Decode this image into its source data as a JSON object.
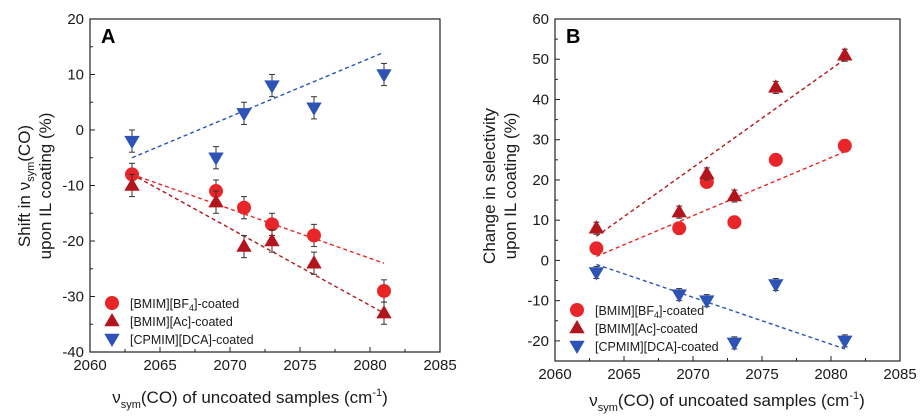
{
  "chart_data": [
    {
      "type": "scatter",
      "panel_label": "A",
      "xlabel": "ν_sym(CO) of uncoated samples (cm⁻¹)",
      "xlabel_parts": {
        "nu": "ν",
        "sub": "sym",
        "main": "(CO) of uncoated samples (cm",
        "sup": "-1",
        "close": ")"
      },
      "ylabel_line1": "Shift in ν_sym(CO)",
      "ylabel_line1_parts": {
        "pre": "Shift in ν",
        "sub": "sym",
        "post": "(CO)"
      },
      "ylabel_line2": "upon IL coating (%)",
      "xlim": [
        2060,
        2085
      ],
      "ylim": [
        -40,
        20
      ],
      "xticks": [
        2060,
        2065,
        2070,
        2075,
        2080,
        2085
      ],
      "yticks": [
        -40,
        -30,
        -20,
        -10,
        0,
        10,
        20
      ],
      "legend_position": "bottom-left",
      "series": [
        {
          "name": "[BMIM][BF4]-coated",
          "name_parts": {
            "pre": "[BMIM][BF",
            "sub": "4",
            "post": "]-coated"
          },
          "marker": "circle",
          "color": "#e8262a",
          "x": [
            2063,
            2069,
            2071,
            2073,
            2076,
            2081
          ],
          "y": [
            -8,
            -11,
            -14,
            -17,
            -19,
            -29
          ],
          "err": [
            2,
            2,
            2,
            2,
            2,
            2
          ],
          "fit": {
            "x": [
              2063,
              2081
            ],
            "y": [
              -8,
              -24
            ]
          }
        },
        {
          "name": "[BMIM][Ac]-coated",
          "marker": "triangle-up",
          "color": "#b3151c",
          "x": [
            2063,
            2069,
            2071,
            2073,
            2076,
            2081
          ],
          "y": [
            -10,
            -13,
            -21,
            -20,
            -24,
            -33
          ],
          "err": [
            2,
            2,
            2,
            2,
            2,
            2
          ],
          "fit": {
            "x": [
              2063,
              2081
            ],
            "y": [
              -8,
              -33
            ]
          }
        },
        {
          "name": "[CPMIM][DCA]-coated",
          "marker": "triangle-down",
          "color": "#2c53b5",
          "x": [
            2063,
            2069,
            2071,
            2073,
            2076,
            2081
          ],
          "y": [
            -2,
            -5,
            3,
            8,
            4,
            10
          ],
          "err": [
            2,
            2,
            2,
            2,
            2,
            2
          ],
          "fit": {
            "x": [
              2063,
              2081
            ],
            "y": [
              -5,
              14
            ]
          }
        }
      ]
    },
    {
      "type": "scatter",
      "panel_label": "B",
      "xlabel": "ν_sym(CO) of uncoated samples (cm⁻¹)",
      "xlabel_parts": {
        "nu": "ν",
        "sub": "sym",
        "main": "(CO) of uncoated samples (cm",
        "sup": "-1",
        "close": ")"
      },
      "ylabel_line1": "Change in selectivity",
      "ylabel_line2": "upon IL coating (%)",
      "xlim": [
        2060,
        2085
      ],
      "ylim": [
        -25,
        60
      ],
      "xticks": [
        2060,
        2065,
        2070,
        2075,
        2080,
        2085
      ],
      "yticks": [
        -20,
        -10,
        0,
        10,
        20,
        30,
        40,
        50,
        60
      ],
      "legend_position": "bottom-left",
      "series": [
        {
          "name": "[BMIM][BF4]-coated",
          "name_parts": {
            "pre": "[BMIM][BF",
            "sub": "4",
            "post": "]-coated"
          },
          "marker": "circle",
          "color": "#e8262a",
          "x": [
            2063,
            2069,
            2071,
            2073,
            2076,
            2081
          ],
          "y": [
            3,
            8,
            19.5,
            9.5,
            25,
            28.5
          ],
          "err": [
            1.5,
            1.5,
            1.5,
            1.5,
            1.5,
            1.5
          ],
          "fit": {
            "x": [
              2063,
              2081
            ],
            "y": [
              1,
              27
            ]
          }
        },
        {
          "name": "[BMIM][Ac]-coated",
          "marker": "triangle-up",
          "color": "#b3151c",
          "x": [
            2063,
            2069,
            2071,
            2073,
            2076,
            2081
          ],
          "y": [
            8,
            12,
            21.5,
            16,
            43,
            51
          ],
          "err": [
            1.5,
            1.5,
            1.5,
            1.5,
            1.5,
            1.5
          ],
          "fit": {
            "x": [
              2063,
              2081
            ],
            "y": [
              6,
              50
            ]
          }
        },
        {
          "name": "[CPMIM][DCA]-coated",
          "marker": "triangle-down",
          "color": "#2c53b5",
          "x": [
            2063,
            2069,
            2071,
            2073,
            2076,
            2081
          ],
          "y": [
            -3,
            -8.5,
            -10,
            -20.5,
            -6,
            -20
          ],
          "err": [
            1.5,
            1.5,
            1.5,
            1.5,
            1.5,
            1.5
          ],
          "fit": {
            "x": [
              2063,
              2081
            ],
            "y": [
              -1,
              -22
            ]
          }
        }
      ]
    }
  ]
}
